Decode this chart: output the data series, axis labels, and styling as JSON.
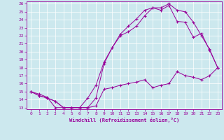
{
  "xlabel": "Windchill (Refroidissement éolien,°C)",
  "bg_color": "#cce8ee",
  "line_color": "#990099",
  "xlim": [
    -0.5,
    23.5
  ],
  "ylim": [
    12.8,
    26.3
  ],
  "xticks": [
    0,
    1,
    2,
    3,
    4,
    5,
    6,
    7,
    8,
    9,
    10,
    11,
    12,
    13,
    14,
    15,
    16,
    17,
    18,
    19,
    20,
    21,
    22,
    23
  ],
  "yticks": [
    13,
    14,
    15,
    16,
    17,
    18,
    19,
    20,
    21,
    22,
    23,
    24,
    25,
    26
  ],
  "line1_x": [
    0,
    1,
    2,
    3,
    4,
    5,
    6,
    7,
    8,
    9,
    10,
    11,
    12,
    13,
    14,
    15,
    16,
    17,
    18,
    19,
    20,
    21,
    22,
    23
  ],
  "line1_y": [
    15,
    14.7,
    14.3,
    13.0,
    13.0,
    13.0,
    13.0,
    13.0,
    13.2,
    15.3,
    15.5,
    15.8,
    16.0,
    16.2,
    16.5,
    15.5,
    15.8,
    16.0,
    17.5,
    17.0,
    16.8,
    16.5,
    17.0,
    18.0
  ],
  "line2_x": [
    0,
    1,
    2,
    3,
    4,
    5,
    6,
    7,
    8,
    9,
    10,
    11,
    12,
    13,
    14,
    15,
    16,
    17,
    18,
    19,
    20,
    21,
    22,
    23
  ],
  "line2_y": [
    15,
    14.5,
    14.2,
    13.8,
    13.0,
    13.0,
    13.0,
    13.0,
    14.2,
    18.5,
    20.5,
    22.2,
    23.2,
    24.1,
    25.2,
    25.5,
    25.5,
    26.0,
    25.2,
    25.0,
    23.7,
    22.0,
    20.3,
    18.0
  ],
  "line3_x": [
    0,
    1,
    2,
    3,
    4,
    5,
    6,
    7,
    8,
    9,
    10,
    11,
    12,
    13,
    14,
    15,
    16,
    17,
    18,
    19,
    20,
    21,
    22,
    23
  ],
  "line3_y": [
    15,
    14.5,
    14.2,
    13.8,
    13.0,
    13.0,
    13.0,
    14.2,
    15.8,
    18.7,
    20.5,
    22.0,
    22.5,
    23.2,
    24.5,
    25.5,
    25.2,
    25.8,
    23.8,
    23.7,
    21.8,
    22.3,
    20.2,
    18.0
  ]
}
